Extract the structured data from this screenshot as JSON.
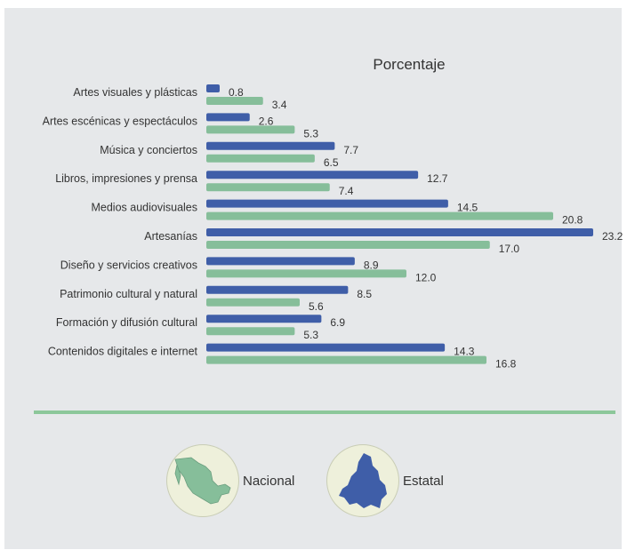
{
  "chart_data": {
    "type": "bar",
    "orientation": "horizontal",
    "title": "Porcentaje",
    "categories": [
      "Artes visuales y plásticas",
      "Artes escénicas y espectáculos",
      "Música y conciertos",
      "Libros, impresiones y prensa",
      "Medios audiovisuales",
      "Artesanías",
      "Diseño y servicios creativos",
      "Patrimonio cultural y natural",
      "Formación y difusión cultural",
      "Contenidos digitales e internet"
    ],
    "series": [
      {
        "name": "Estatal",
        "color": "#3f5ea8",
        "values": [
          0.8,
          2.6,
          7.7,
          12.7,
          14.5,
          23.2,
          8.9,
          8.5,
          6.9,
          14.3
        ],
        "labels": [
          "0.8",
          "2.6",
          "7.7",
          "12.7",
          "14.5",
          "23.2",
          "8.9",
          "8.5",
          "6.9",
          "14.3"
        ]
      },
      {
        "name": "Nacional",
        "color": "#86be9a",
        "values": [
          3.4,
          5.3,
          6.5,
          7.4,
          20.8,
          17.0,
          12.0,
          5.6,
          5.3,
          16.8
        ],
        "labels": [
          "3.4",
          "5.3",
          "6.5",
          "7.4",
          "20.8",
          "17.0",
          "12.0",
          "5.6",
          "5.3",
          "16.8"
        ]
      }
    ],
    "xlim": [
      0,
      23.2
    ],
    "grid": false,
    "legend_position": "bottom"
  },
  "legend": {
    "nacional_label": "Nacional",
    "estatal_label": "Estatal",
    "nacional_icon": "mexico-map-icon",
    "estatal_icon": "state-map-icon",
    "nacional_color": "#86be9a",
    "estatal_color": "#3f5ea8"
  },
  "colors": {
    "background": "#e6e8ea",
    "divider": "#8cc79a",
    "legend_circle": "#eef0db"
  }
}
